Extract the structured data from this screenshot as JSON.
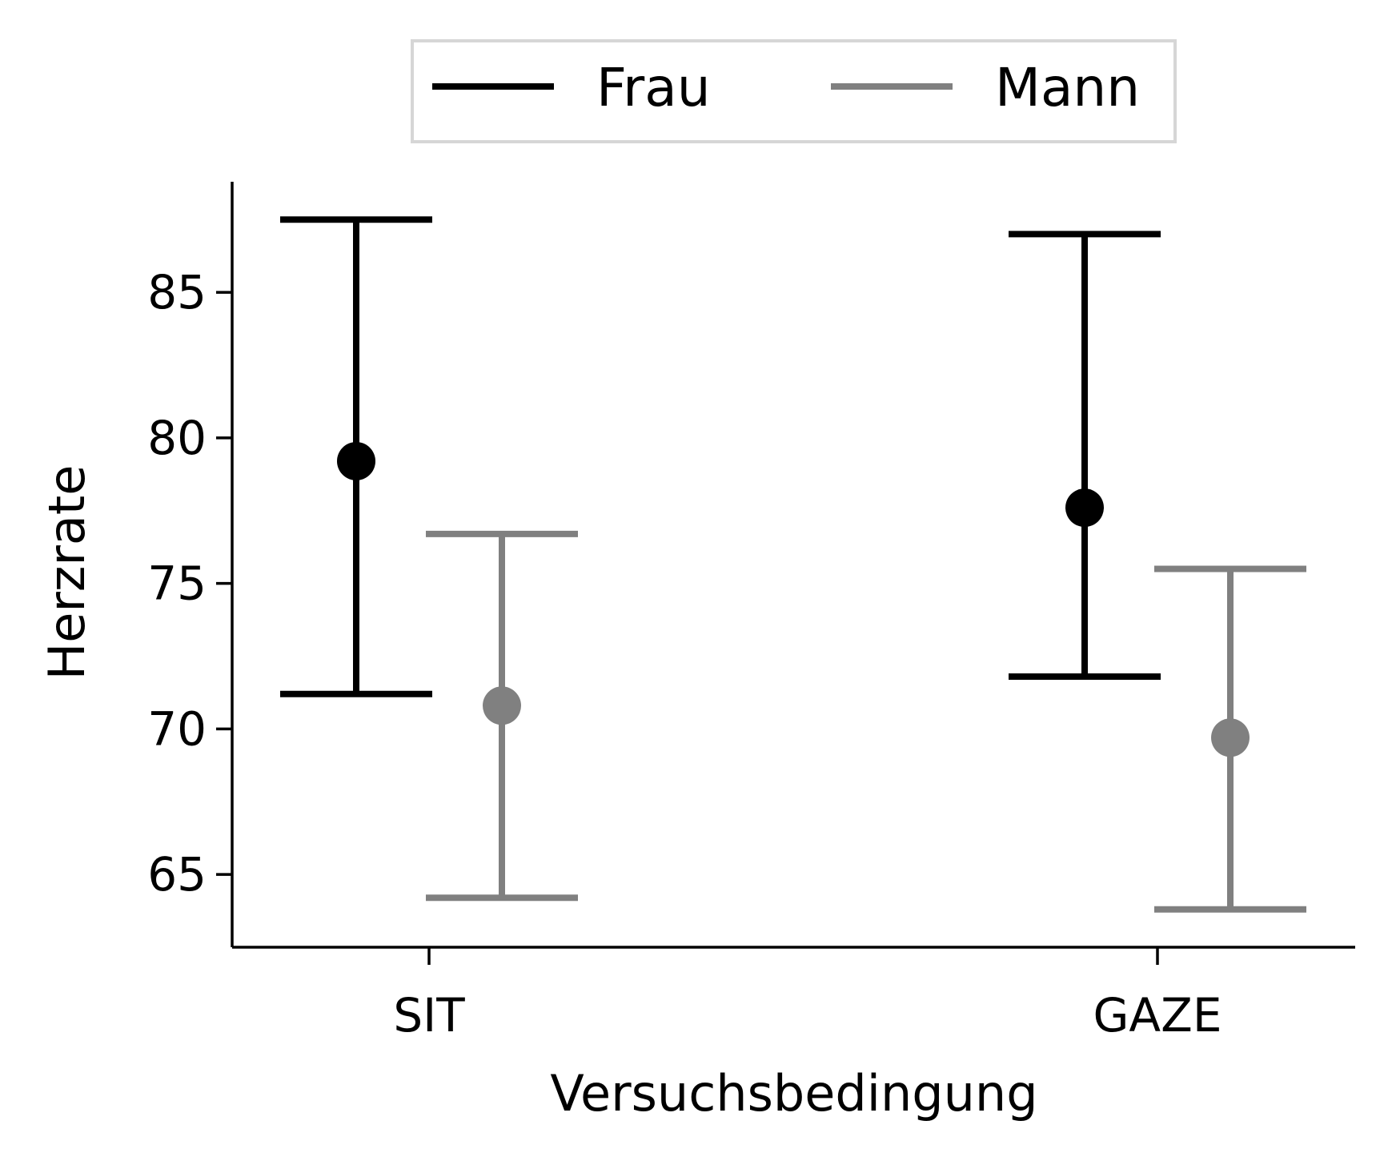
{
  "chart_data": {
    "type": "pointplot_errorbar",
    "xlabel": "Versuchsbedingung",
    "ylabel": "Herzrate",
    "categories": [
      "SIT",
      "GAZE"
    ],
    "ylim": [
      62.5,
      88.8
    ],
    "yticks": [
      65,
      70,
      75,
      80,
      85
    ],
    "grid": false,
    "legend_position": "top-center",
    "series": [
      {
        "name": "Frau",
        "color": "#000000",
        "points": [
          {
            "category": "SIT",
            "mean": 79.2,
            "lower": 71.2,
            "upper": 87.5
          },
          {
            "category": "GAZE",
            "mean": 77.6,
            "lower": 71.8,
            "upper": 87.0
          }
        ]
      },
      {
        "name": "Mann",
        "color": "#808080",
        "points": [
          {
            "category": "SIT",
            "mean": 70.8,
            "lower": 64.2,
            "upper": 76.7
          },
          {
            "category": "GAZE",
            "mean": 69.7,
            "lower": 63.8,
            "upper": 75.5
          }
        ]
      }
    ]
  }
}
